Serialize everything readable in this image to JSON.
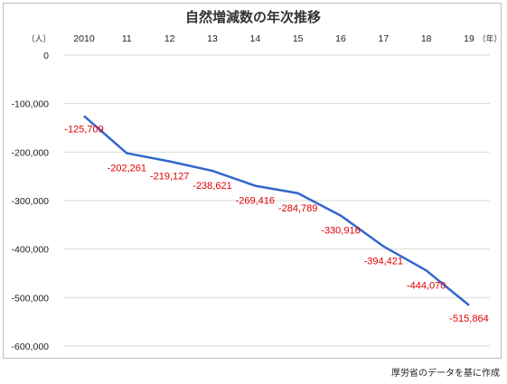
{
  "chart_data": {
    "type": "line",
    "title": "自然増減数の年次推移",
    "x_unit_left": "（人）",
    "x_unit_right": "（年）",
    "categories": [
      "2010",
      "11",
      "12",
      "13",
      "14",
      "15",
      "16",
      "17",
      "18",
      "19"
    ],
    "series": [
      {
        "values": [
          -125709,
          -202261,
          -219127,
          -238621,
          -269416,
          -284789,
          -330916,
          -394421,
          -444070,
          -515864
        ],
        "labels": [
          "-125,709",
          "-202,261",
          "-219,127",
          "-238,621",
          "-269,416",
          "-284,789",
          "-330,916",
          "-394,421",
          "-444,070",
          "-515,864"
        ],
        "color": "#3366cc"
      }
    ],
    "ylim": [
      -600000,
      0
    ],
    "yticks": [
      0,
      -100000,
      -200000,
      -300000,
      -400000,
      -500000,
      -600000
    ],
    "ytick_labels": [
      "0",
      "-100,000",
      "-200,000",
      "-300,000",
      "-400,000",
      "-500,000",
      "-600,000"
    ],
    "grid": true,
    "label_color": "#e00000"
  },
  "source_note": "厚労省のデータを基に作成"
}
